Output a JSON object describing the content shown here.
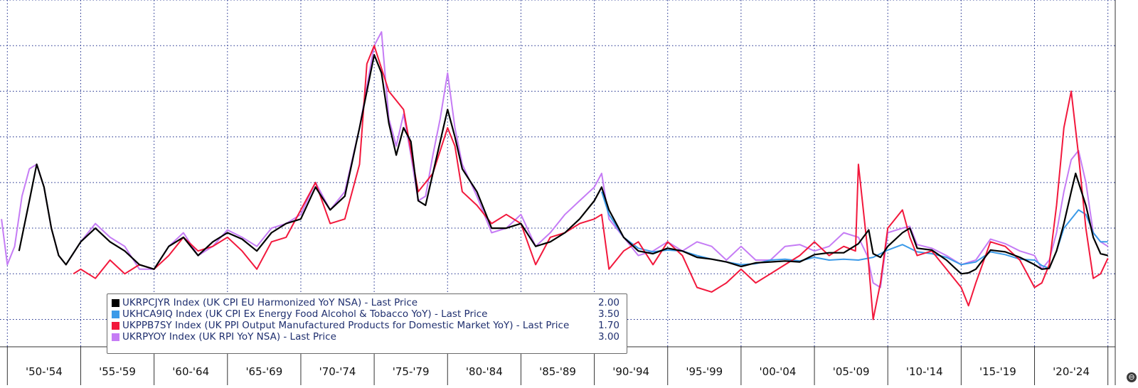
{
  "chart_data": {
    "type": "line",
    "title": "",
    "xlabel": "",
    "ylabel": "",
    "x_range": [
      1949.5,
      2025.5
    ],
    "y_range": [
      -8,
      30
    ],
    "grid": true,
    "legend_position": "bottom-left",
    "x_tick_labels": [
      "'50-'54",
      "'55-'59",
      "'60-'64",
      "'65-'69",
      "'70-'74",
      "'75-'79",
      "'80-'84",
      "'85-'89",
      "'90-'94",
      "'95-'99",
      "'00-'04",
      "'05-'09",
      "'10-'14",
      "'15-'19",
      "'20-'24"
    ],
    "series": [
      {
        "name": "UKRPCJYR Index (UK CPI EU Harmonized YoY NSA) - Last Price",
        "last_price": "2.00",
        "color": "#000000",
        "x": [
          1950.8,
          1951.5,
          1952.0,
          1952.5,
          1953.0,
          1953.5,
          1954.0,
          1955.0,
          1956.0,
          1957.0,
          1958.0,
          1959.0,
          1960.0,
          1961.0,
          1962.0,
          1963.0,
          1964.0,
          1965.0,
          1966.0,
          1967.0,
          1968.0,
          1969.0,
          1970.0,
          1971.0,
          1972.0,
          1973.0,
          1974.0,
          1975.0,
          1975.5,
          1976.0,
          1976.5,
          1977.0,
          1977.5,
          1978.0,
          1978.5,
          1979.0,
          1979.5,
          1980.0,
          1980.5,
          1981.0,
          1982.0,
          1983.0,
          1984.0,
          1985.0,
          1986.0,
          1987.0,
          1988.0,
          1989.0,
          1990.0,
          1990.5,
          1991.0,
          1992.0,
          1993.0,
          1994.0,
          1995.0,
          1996.0,
          1997.0,
          1998.0,
          1999.0,
          2000.0,
          2001.0,
          2002.0,
          2003.0,
          2004.0,
          2005.0,
          2006.0,
          2007.0,
          2008.0,
          2008.7,
          2009.0,
          2009.5,
          2010.0,
          2011.0,
          2011.5,
          2012.0,
          2013.0,
          2014.0,
          2015.0,
          2015.5,
          2016.0,
          2017.0,
          2018.0,
          2019.0,
          2020.0,
          2020.5,
          2021.0,
          2021.5,
          2022.0,
          2022.5,
          2022.8,
          2023.0,
          2023.5,
          2024.0,
          2024.5,
          2025.0
        ],
        "y": [
          2.5,
          8.0,
          12.0,
          9.5,
          5.0,
          2.0,
          1.0,
          3.5,
          5.0,
          3.5,
          2.5,
          1.0,
          0.5,
          3.0,
          4.0,
          2.0,
          3.5,
          4.5,
          3.8,
          2.5,
          4.5,
          5.5,
          6.0,
          9.5,
          7.0,
          8.5,
          16.0,
          24.0,
          22.0,
          16.5,
          13.0,
          16.0,
          14.5,
          8.0,
          7.5,
          11.0,
          14.5,
          18.0,
          15.0,
          11.5,
          9.0,
          5.0,
          5.0,
          5.5,
          3.0,
          3.5,
          4.5,
          6.0,
          8.0,
          9.5,
          7.0,
          4.0,
          2.5,
          2.2,
          2.8,
          2.5,
          1.8,
          1.6,
          1.3,
          0.8,
          1.2,
          1.3,
          1.4,
          1.3,
          2.1,
          2.3,
          2.3,
          3.3,
          4.8,
          2.2,
          1.8,
          3.0,
          4.5,
          5.0,
          2.8,
          2.6,
          1.5,
          0.0,
          0.1,
          0.5,
          2.6,
          2.4,
          1.8,
          1.0,
          0.5,
          0.6,
          2.5,
          5.5,
          9.0,
          11.0,
          10.0,
          7.5,
          4.0,
          2.2,
          2.0
        ]
      },
      {
        "name": "UKHCA9IQ Index (UK CPI Ex Energy Food Alcohol & Tobacco YoY) - Last Price",
        "last_price": "3.50",
        "color": "#3b9ae8",
        "x": [
          1990.5,
          1991.0,
          1992.0,
          1993.0,
          1994.0,
          1995.0,
          1996.0,
          1997.0,
          1998.0,
          1999.0,
          2000.0,
          2001.0,
          2002.0,
          2003.0,
          2004.0,
          2005.0,
          2006.0,
          2007.0,
          2008.0,
          2009.0,
          2010.0,
          2011.0,
          2012.0,
          2013.0,
          2014.0,
          2015.0,
          2016.0,
          2017.0,
          2018.0,
          2019.0,
          2020.0,
          2020.5,
          2021.0,
          2021.5,
          2022.0,
          2022.5,
          2023.0,
          2023.5,
          2024.0,
          2024.5,
          2025.0
        ],
        "y": [
          9.0,
          6.5,
          4.0,
          2.8,
          2.4,
          2.6,
          2.5,
          2.0,
          1.6,
          1.3,
          1.0,
          1.1,
          1.5,
          1.6,
          1.4,
          1.8,
          1.5,
          1.6,
          1.5,
          1.8,
          2.6,
          3.2,
          2.4,
          2.2,
          1.8,
          1.0,
          1.3,
          2.4,
          2.1,
          1.6,
          1.5,
          0.9,
          0.6,
          2.5,
          5.0,
          6.0,
          7.0,
          6.5,
          4.5,
          3.5,
          3.5
        ]
      },
      {
        "name": "UKPPB7SY Index (UK PPI Output Manufactured Products for Domestic Market YoY) - Last Price",
        "last_price": "1.70",
        "color": "#f2183c",
        "x": [
          1954.5,
          1955.0,
          1956.0,
          1957.0,
          1958.0,
          1959.0,
          1960.0,
          1961.0,
          1962.0,
          1963.0,
          1964.0,
          1965.0,
          1966.0,
          1967.0,
          1968.0,
          1969.0,
          1970.0,
          1971.0,
          1972.0,
          1973.0,
          1974.0,
          1974.5,
          1975.0,
          1976.0,
          1977.0,
          1978.0,
          1979.0,
          1980.0,
          1980.5,
          1981.0,
          1982.0,
          1983.0,
          1984.0,
          1985.0,
          1986.0,
          1987.0,
          1988.0,
          1989.0,
          1990.0,
          1990.5,
          1991.0,
          1992.0,
          1993.0,
          1994.0,
          1995.0,
          1996.0,
          1997.0,
          1998.0,
          1999.0,
          2000.0,
          2001.0,
          2002.0,
          2003.0,
          2004.0,
          2005.0,
          2006.0,
          2007.0,
          2007.8,
          2008.0,
          2008.6,
          2009.0,
          2009.5,
          2010.0,
          2011.0,
          2011.5,
          2012.0,
          2013.0,
          2014.0,
          2015.0,
          2015.5,
          2016.0,
          2017.0,
          2018.0,
          2019.0,
          2020.0,
          2020.5,
          2021.0,
          2021.5,
          2022.0,
          2022.5,
          2023.0,
          2023.5,
          2024.0,
          2024.5,
          2025.0
        ],
        "y": [
          0.0,
          0.5,
          -0.5,
          1.5,
          0.0,
          1.0,
          0.5,
          2.0,
          4.0,
          2.5,
          3.0,
          4.0,
          2.5,
          0.5,
          3.5,
          4.0,
          7.0,
          10.0,
          5.5,
          6.0,
          12.0,
          23.0,
          25.0,
          20.0,
          18.0,
          9.0,
          11.0,
          16.0,
          14.0,
          9.0,
          7.5,
          5.5,
          6.5,
          5.5,
          1.0,
          4.0,
          4.5,
          5.5,
          6.0,
          6.5,
          0.5,
          2.5,
          3.5,
          1.0,
          3.5,
          2.0,
          -1.5,
          -2.0,
          -1.0,
          0.5,
          -1.0,
          0.0,
          1.0,
          2.0,
          3.5,
          2.0,
          3.0,
          2.5,
          12.0,
          3.0,
          -5.0,
          -1.0,
          5.0,
          7.0,
          4.0,
          2.0,
          2.5,
          0.5,
          -1.5,
          -3.5,
          -1.0,
          3.5,
          3.0,
          1.5,
          -1.5,
          -1.0,
          1.0,
          7.5,
          16.0,
          20.0,
          13.0,
          5.0,
          -0.5,
          0.0,
          1.7
        ]
      },
      {
        "name": "UKRPYOY Index (UK RPI YoY NSA) - Last Price",
        "last_price": "3.00",
        "color": "#c57cf5",
        "x": [
          1949.6,
          1950.0,
          1950.5,
          1951.0,
          1951.5,
          1952.0,
          1952.5,
          1953.0,
          1953.5,
          1954.0,
          1955.0,
          1956.0,
          1957.0,
          1958.0,
          1959.0,
          1960.0,
          1961.0,
          1962.0,
          1963.0,
          1964.0,
          1965.0,
          1966.0,
          1967.0,
          1968.0,
          1969.0,
          1970.0,
          1971.0,
          1972.0,
          1973.0,
          1974.0,
          1975.0,
          1975.5,
          1976.0,
          1976.5,
          1977.0,
          1977.5,
          1978.0,
          1978.5,
          1979.0,
          1979.5,
          1980.0,
          1980.5,
          1981.0,
          1982.0,
          1983.0,
          1984.0,
          1985.0,
          1986.0,
          1987.0,
          1988.0,
          1989.0,
          1990.0,
          1990.5,
          1991.0,
          1992.0,
          1993.0,
          1994.0,
          1995.0,
          1996.0,
          1997.0,
          1998.0,
          1999.0,
          2000.0,
          2001.0,
          2002.0,
          2003.0,
          2004.0,
          2005.0,
          2006.0,
          2007.0,
          2008.0,
          2008.6,
          2009.0,
          2009.5,
          2010.0,
          2011.0,
          2011.5,
          2012.0,
          2013.0,
          2014.0,
          2015.0,
          2016.0,
          2017.0,
          2018.0,
          2019.0,
          2020.0,
          2020.5,
          2021.0,
          2021.5,
          2022.0,
          2022.5,
          2023.0,
          2023.5,
          2024.0,
          2024.5,
          2025.0
        ],
        "y": [
          6.0,
          1.0,
          3.0,
          8.5,
          11.5,
          12.0,
          9.5,
          5.0,
          2.0,
          1.0,
          3.5,
          5.5,
          4.0,
          3.0,
          0.5,
          0.5,
          3.0,
          4.5,
          2.0,
          3.0,
          4.8,
          4.0,
          3.0,
          5.0,
          5.5,
          6.5,
          10.0,
          7.0,
          9.0,
          16.0,
          25.0,
          26.5,
          17.0,
          14.0,
          17.5,
          13.0,
          8.0,
          8.5,
          13.0,
          17.0,
          22.0,
          16.0,
          12.0,
          8.5,
          4.5,
          5.0,
          6.5,
          3.0,
          4.5,
          6.5,
          8.0,
          9.5,
          11.0,
          6.0,
          4.0,
          2.0,
          2.5,
          3.5,
          2.5,
          3.5,
          3.0,
          1.5,
          3.0,
          1.5,
          1.5,
          3.0,
          3.2,
          2.5,
          3.0,
          4.5,
          4.0,
          2.0,
          -1.0,
          -1.5,
          4.5,
          5.0,
          5.2,
          3.2,
          2.8,
          2.0,
          1.0,
          1.5,
          3.8,
          3.3,
          2.5,
          2.0,
          0.5,
          1.5,
          4.5,
          9.0,
          12.5,
          13.5,
          10.0,
          4.5,
          3.5,
          3.0
        ]
      }
    ]
  },
  "ui": {
    "corner_button_glyph": "⊖"
  }
}
